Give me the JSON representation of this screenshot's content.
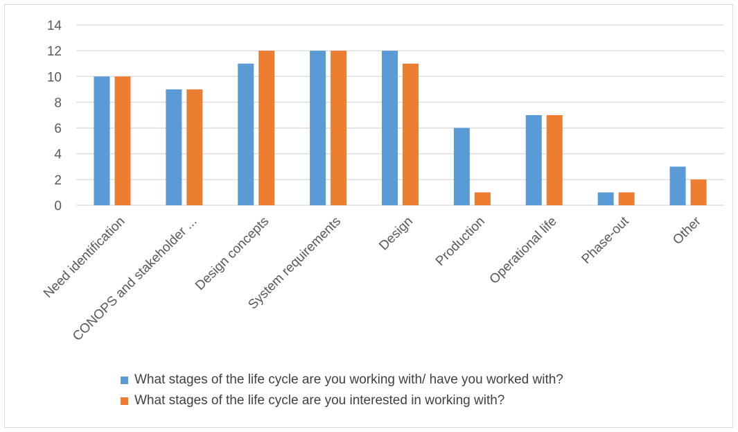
{
  "chart_data": {
    "type": "bar",
    "categories": [
      "Need identification",
      "CONOPS and stakeholder ...",
      "Design concepts",
      "System requirements",
      "Design",
      "Production",
      "Operational life",
      "Phase-out",
      "Other"
    ],
    "series": [
      {
        "name": "What stages of the life cycle are you working with/ have you worked with?",
        "values": [
          10,
          9,
          11,
          12,
          12,
          6,
          7,
          1,
          3
        ],
        "color": "#5b9bd5"
      },
      {
        "name": "What stages of the life cycle are you interested in working with?",
        "values": [
          10,
          9,
          12,
          12,
          11,
          1,
          7,
          1,
          2
        ],
        "color": "#ed7d31"
      }
    ],
    "ylim": [
      0,
      14
    ],
    "yticks": [
      0,
      2,
      4,
      6,
      8,
      10,
      12,
      14
    ],
    "grid": true,
    "legend_position": "bottom",
    "title": "",
    "xlabel": "",
    "ylabel": ""
  }
}
